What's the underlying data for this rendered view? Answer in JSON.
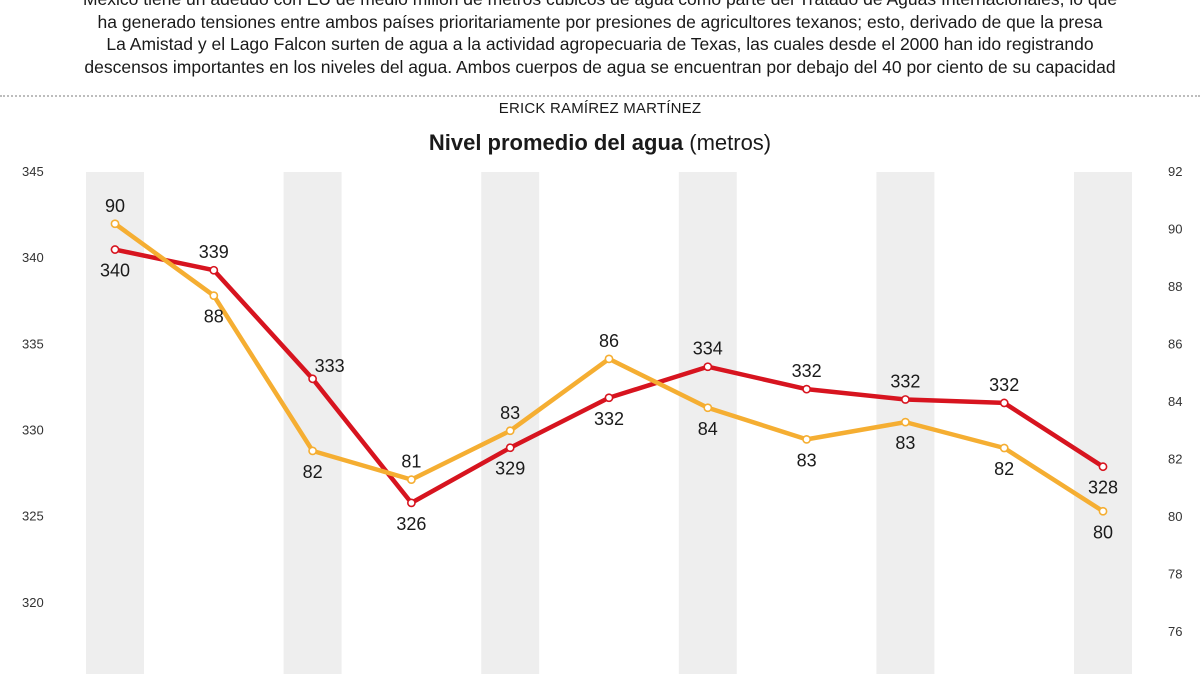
{
  "intro": {
    "lines": [
      "México tiene un adeudo con EU de medio millón de metros cúbicos de agua como parte del Tratado de Aguas Internacionales, lo que",
      "ha generado tensiones entre ambos países prioritariamente por presiones de agricultores texanos; esto, derivado de que la presa",
      "La Amistad y el Lago Falcon surten de agua a la actividad agropecuaria de Texas, las cuales desde el 2000 han ido registrando",
      "descensos importantes en los niveles del agua. Ambos cuerpos de agua se encuentran por debajo del 40 por ciento de su capacidad"
    ]
  },
  "byline": "ERICK RAMÍREZ MARTÍNEZ",
  "chart_data": {
    "type": "line",
    "title": "Nivel promedio del agua",
    "title_unit": "(metros)",
    "grid": false,
    "colors": {
      "red": "#d7141f",
      "yellow": "#f5ae32",
      "band": "#eeeeee"
    },
    "y_left": {
      "ylim": [
        318,
        345
      ],
      "ticks": [
        320,
        325,
        330,
        335,
        340,
        345
      ]
    },
    "y_right": {
      "ylim": [
        74.5,
        92
      ],
      "ticks": [
        76,
        78,
        80,
        82,
        84,
        86,
        88,
        90,
        92
      ]
    },
    "series": [
      {
        "axis": "left",
        "color": "#d7141f",
        "values": [
          340.5,
          339.3,
          333.0,
          325.8,
          329.0,
          331.9,
          333.7,
          332.4,
          331.8,
          331.6,
          327.9
        ],
        "labels": [
          "340",
          "339",
          "333",
          "326",
          "329",
          "332",
          "334",
          "332",
          "332",
          "332",
          "328"
        ],
        "label_pos": [
          "below",
          "above",
          "right",
          "below",
          "below",
          "below",
          "above",
          "above",
          "above",
          "above",
          "below"
        ]
      },
      {
        "axis": "right",
        "color": "#f5ae32",
        "values": [
          90.2,
          87.7,
          82.3,
          81.3,
          83.0,
          85.5,
          83.8,
          82.7,
          83.3,
          82.4,
          80.2
        ],
        "labels": [
          "90",
          "88",
          "82",
          "81",
          "83",
          "86",
          "84",
          "83",
          "83",
          "82",
          "80"
        ],
        "label_pos": [
          "above",
          "below",
          "below",
          "above",
          "above",
          "above",
          "below",
          "below",
          "below",
          "below",
          "below"
        ]
      }
    ]
  }
}
